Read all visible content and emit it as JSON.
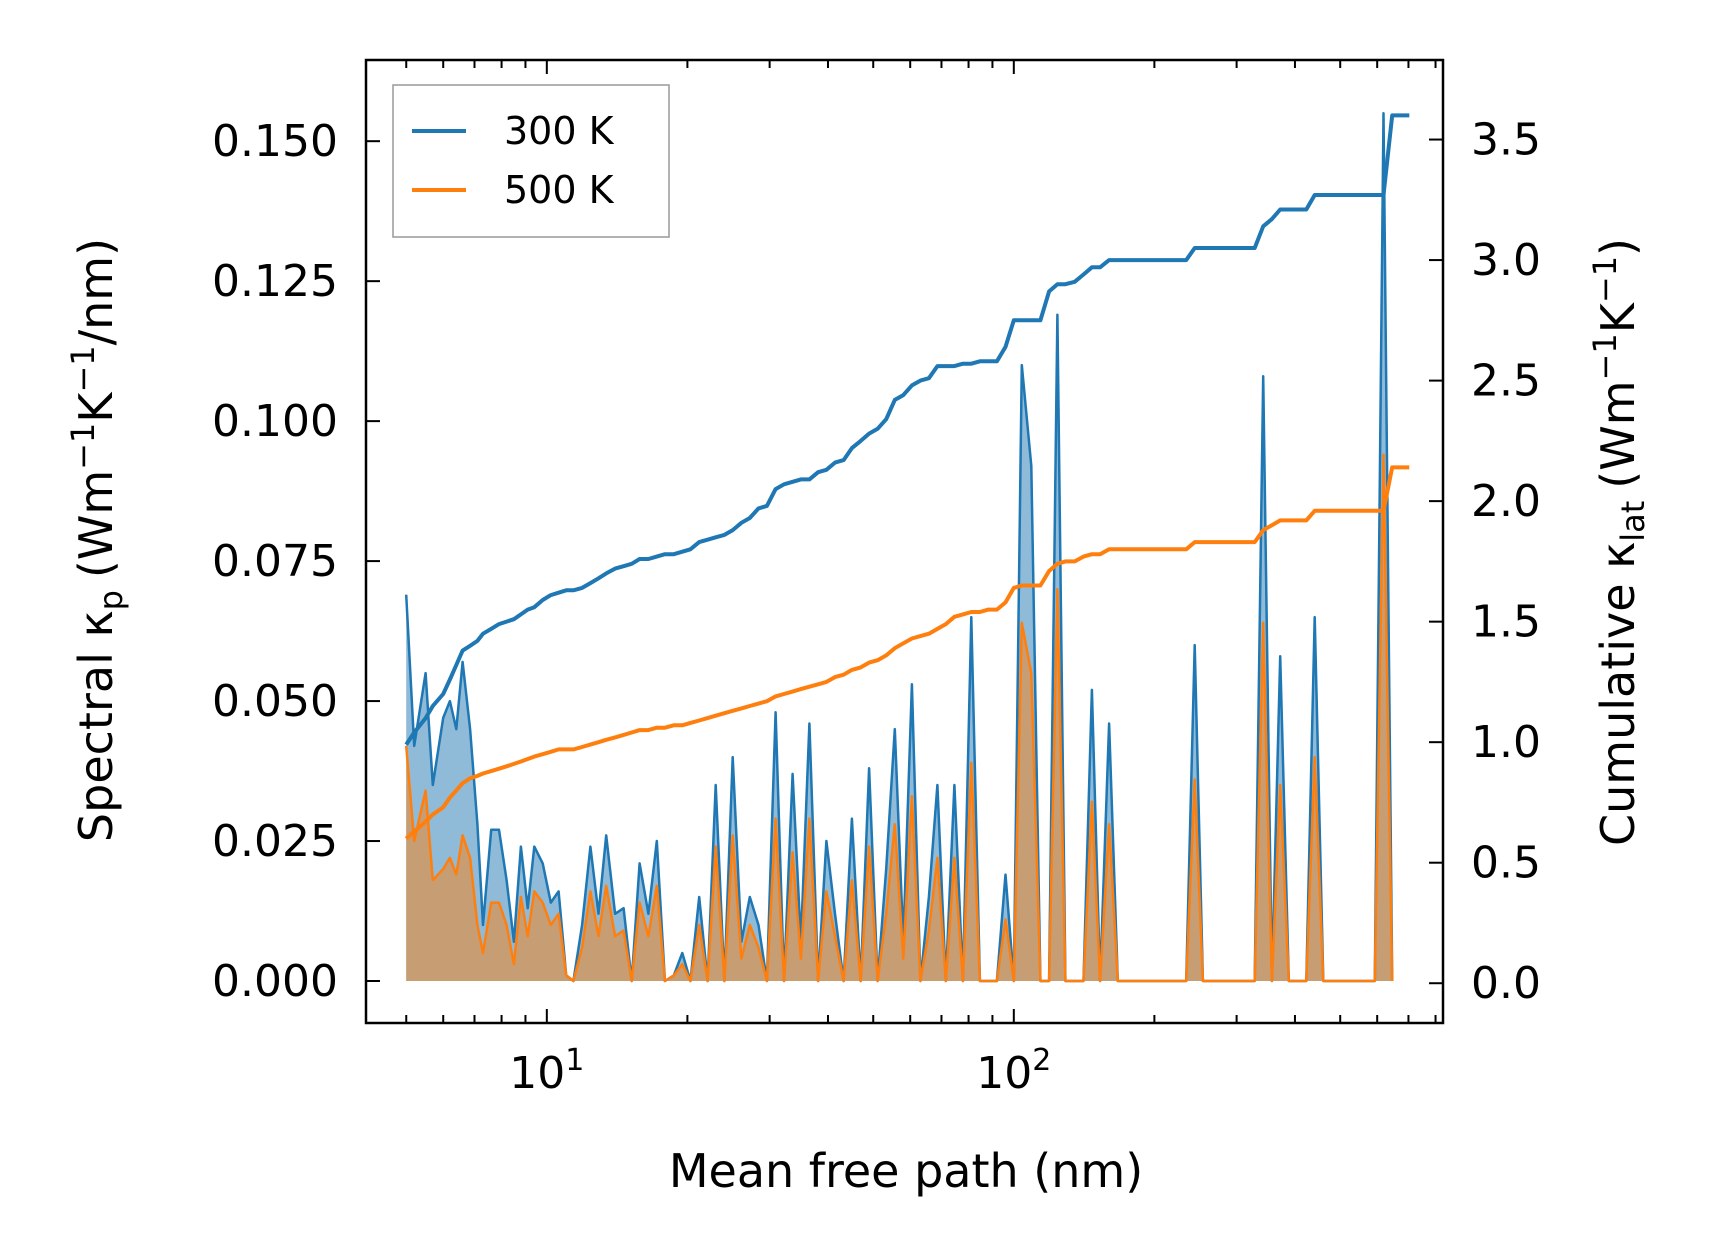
{
  "chart_data": {
    "type": "line",
    "x_scale": "log",
    "xlabel": "Mean free path (nm)",
    "ylabel_left": {
      "prefix": "Spectral κ",
      "sub": "p",
      "units": "(Wm",
      "u1": "−1",
      "u2": "K",
      "u3": "−1",
      "u4": "/nm)"
    },
    "ylabel_right": {
      "prefix": "Cumulative κ",
      "sub": "lat",
      "units": "(Wm",
      "u1": "−1",
      "u2": "K",
      "u3": "−1",
      "u4": ")"
    },
    "xlim": [
      4.1,
      830
    ],
    "ylim_left": [
      -0.0075,
      0.1645
    ],
    "ylim_right": [
      -0.165,
      3.83
    ],
    "x_major_ticks": [
      {
        "value": 10,
        "base": "10",
        "exp": "1"
      },
      {
        "value": 100,
        "base": "10",
        "exp": "2"
      }
    ],
    "y_left_ticks": [
      {
        "value": 0.0,
        "label": "0.000"
      },
      {
        "value": 0.025,
        "label": "0.025"
      },
      {
        "value": 0.05,
        "label": "0.050"
      },
      {
        "value": 0.075,
        "label": "0.075"
      },
      {
        "value": 0.1,
        "label": "0.100"
      },
      {
        "value": 0.125,
        "label": "0.125"
      },
      {
        "value": 0.15,
        "label": "0.150"
      }
    ],
    "y_right_ticks": [
      {
        "value": 0.0,
        "label": "0.0"
      },
      {
        "value": 0.5,
        "label": "0.5"
      },
      {
        "value": 1.0,
        "label": "1.0"
      },
      {
        "value": 1.5,
        "label": "1.5"
      },
      {
        "value": 2.0,
        "label": "2.0"
      },
      {
        "value": 2.5,
        "label": "2.5"
      },
      {
        "value": 3.0,
        "label": "3.0"
      },
      {
        "value": 3.5,
        "label": "3.5"
      }
    ],
    "legend": {
      "location": "top-left",
      "entries": [
        {
          "name": "300 K",
          "color": "#1f77b4"
        },
        {
          "name": "500 K",
          "color": "#ff7f0e"
        }
      ]
    },
    "series": [
      {
        "name": "300 K",
        "color": "#1f77b4",
        "spectral_x": [
          5.0,
          5.2,
          5.5,
          5.7,
          6.0,
          6.2,
          6.4,
          6.6,
          6.85,
          7.1,
          7.3,
          7.6,
          7.9,
          8.2,
          8.5,
          8.8,
          9.1,
          9.4,
          9.8,
          10.2,
          10.6,
          11.0,
          11.4,
          11.9,
          12.4,
          12.9,
          13.4,
          14.0,
          14.6,
          15.2,
          15.8,
          16.5,
          17.2,
          17.9,
          18.7,
          19.5,
          20.3,
          21.2,
          22.1,
          23.0,
          24.0,
          25.0,
          26.1,
          27.2,
          28.4,
          29.6,
          30.9,
          32.2,
          33.6,
          35.0,
          36.5,
          38.1,
          39.7,
          41.4,
          43.2,
          45.0,
          47.0,
          49.0,
          51.1,
          53.3,
          55.6,
          58.0,
          60.5,
          63.1,
          65.8,
          68.6,
          71.5,
          74.6,
          77.8,
          81.1,
          84.6,
          88.2,
          92.0,
          96.0,
          100.0,
          104.0,
          109.0,
          114.0,
          119.0,
          124.0,
          129.0,
          135.0,
          141.0,
          147.0,
          153.0,
          160.0,
          167.0,
          174.0,
          181.0,
          189.0,
          197.0,
          206.0,
          215.0,
          224.0,
          234.0,
          244.0,
          254.0,
          265.0,
          277.0,
          289.0,
          301.0,
          314.0,
          328.0,
          342.0,
          357.0,
          372.0,
          388.0,
          405.0,
          423.0,
          441.0,
          460.0,
          480.0,
          501.0,
          523.0,
          545.0,
          569.0,
          593.0,
          619.0,
          646.0,
          674.0,
          703.0,
          733.0,
          765.0
        ],
        "spectral_y": [
          0.069,
          0.042,
          0.055,
          0.035,
          0.047,
          0.05,
          0.045,
          0.057,
          0.045,
          0.028,
          0.01,
          0.027,
          0.027,
          0.018,
          0.007,
          0.024,
          0.013,
          0.024,
          0.021,
          0.014,
          0.016,
          0.001,
          0.0,
          0.01,
          0.024,
          0.012,
          0.026,
          0.012,
          0.013,
          0.0,
          0.021,
          0.012,
          0.025,
          0.0,
          0.001,
          0.005,
          0.0,
          0.015,
          0.0,
          0.035,
          0.0,
          0.04,
          0.007,
          0.015,
          0.01,
          0.0,
          0.048,
          0.0,
          0.037,
          0.007,
          0.046,
          0.0,
          0.025,
          0.012,
          0.0,
          0.029,
          0.0,
          0.038,
          0.0,
          0.02,
          0.045,
          0.007,
          0.053,
          0.0,
          0.015,
          0.035,
          0.0,
          0.035,
          0.0,
          0.065,
          0.0,
          0.0,
          0.0,
          0.019,
          0.0,
          0.11,
          0.092,
          0.0,
          0.0,
          0.119,
          0.0,
          0.0,
          0.0,
          0.052,
          0.0,
          0.046,
          0.0,
          0.0,
          0.0,
          0.0,
          0.0,
          0.0,
          0.0,
          0.0,
          0.0,
          0.06,
          0.0,
          0.0,
          0.0,
          0.0,
          0.0,
          0.0,
          0.0,
          0.108,
          0.0,
          0.058,
          0.0,
          0.0,
          0.0,
          0.065,
          0.0,
          0.0,
          0.0,
          0.0,
          0.0,
          0.0,
          0.0,
          0.155,
          0.0
        ],
        "cumulative_x": [
          5.0,
          5.2,
          5.5,
          5.7,
          6.0,
          6.2,
          6.4,
          6.6,
          6.85,
          7.1,
          7.3,
          7.6,
          7.9,
          8.2,
          8.5,
          8.8,
          9.1,
          9.4,
          9.8,
          10.2,
          10.6,
          11.0,
          11.4,
          11.9,
          12.4,
          12.9,
          13.4,
          14.0,
          14.6,
          15.2,
          15.8,
          16.5,
          17.2,
          17.9,
          18.7,
          19.5,
          20.3,
          21.2,
          22.1,
          23.0,
          24.0,
          25.0,
          26.1,
          27.2,
          28.4,
          29.6,
          30.9,
          32.2,
          33.6,
          35.0,
          36.5,
          38.1,
          39.7,
          41.4,
          43.2,
          45.0,
          47.0,
          49.0,
          51.1,
          53.3,
          55.6,
          58.0,
          60.5,
          63.1,
          65.8,
          68.6,
          71.5,
          74.6,
          77.8,
          81.1,
          84.6,
          88.2,
          92.0,
          96.0,
          100.0,
          104.0,
          109.0,
          114.0,
          119.0,
          124.0,
          129.0,
          135.0,
          141.0,
          147.0,
          153.0,
          160.0,
          167.0,
          174.0,
          181.0,
          189.0,
          197.0,
          206.0,
          215.0,
          224.0,
          234.0,
          244.0,
          254.0,
          265.0,
          277.0,
          289.0,
          301.0,
          314.0,
          328.0,
          342.0,
          357.0,
          372.0,
          388.0,
          405.0,
          423.0,
          441.0,
          460.0,
          480.0,
          501.0,
          523.0,
          545.0,
          569.0,
          593.0,
          619.0,
          646.0,
          674.0,
          703.0,
          733.0,
          765.0
        ],
        "cumulative_y": [
          0.99,
          1.04,
          1.1,
          1.15,
          1.2,
          1.26,
          1.32,
          1.38,
          1.4,
          1.42,
          1.45,
          1.47,
          1.49,
          1.5,
          1.51,
          1.53,
          1.55,
          1.56,
          1.59,
          1.61,
          1.62,
          1.63,
          1.63,
          1.64,
          1.66,
          1.68,
          1.7,
          1.72,
          1.73,
          1.74,
          1.76,
          1.76,
          1.77,
          1.78,
          1.78,
          1.79,
          1.8,
          1.83,
          1.84,
          1.85,
          1.86,
          1.88,
          1.91,
          1.93,
          1.97,
          1.98,
          2.05,
          2.07,
          2.08,
          2.09,
          2.09,
          2.12,
          2.13,
          2.16,
          2.17,
          2.22,
          2.25,
          2.28,
          2.3,
          2.34,
          2.42,
          2.44,
          2.48,
          2.5,
          2.51,
          2.56,
          2.56,
          2.56,
          2.57,
          2.57,
          2.58,
          2.58,
          2.58,
          2.64,
          2.75,
          2.75,
          2.75,
          2.75,
          2.87,
          2.9,
          2.9,
          2.91,
          2.94,
          2.97,
          2.97,
          3.0,
          3.0,
          3.0,
          3.0,
          3.0,
          3.0,
          3.0,
          3.0,
          3.0,
          3.0,
          3.05,
          3.05,
          3.05,
          3.05,
          3.05,
          3.05,
          3.05,
          3.05,
          3.14,
          3.17,
          3.21,
          3.21,
          3.21,
          3.21,
          3.27,
          3.27,
          3.27,
          3.27,
          3.27,
          3.27,
          3.27,
          3.27,
          3.27,
          3.6,
          3.6,
          3.6
        ]
      },
      {
        "name": "500 K",
        "color": "#ff7f0e",
        "spectral_x": [
          5.0,
          5.2,
          5.5,
          5.7,
          6.0,
          6.2,
          6.4,
          6.6,
          6.85,
          7.1,
          7.3,
          7.6,
          7.9,
          8.2,
          8.5,
          8.8,
          9.1,
          9.4,
          9.8,
          10.2,
          10.6,
          11.0,
          11.4,
          11.9,
          12.4,
          12.9,
          13.4,
          14.0,
          14.6,
          15.2,
          15.8,
          16.5,
          17.2,
          17.9,
          18.7,
          19.5,
          20.3,
          21.2,
          22.1,
          23.0,
          24.0,
          25.0,
          26.1,
          27.2,
          28.4,
          29.6,
          30.9,
          32.2,
          33.6,
          35.0,
          36.5,
          38.1,
          39.7,
          41.4,
          43.2,
          45.0,
          47.0,
          49.0,
          51.1,
          53.3,
          55.6,
          58.0,
          60.5,
          63.1,
          65.8,
          68.6,
          71.5,
          74.6,
          77.8,
          81.1,
          84.6,
          88.2,
          92.0,
          96.0,
          100.0,
          104.0,
          109.0,
          114.0,
          119.0,
          124.0,
          129.0,
          135.0,
          141.0,
          147.0,
          153.0,
          160.0,
          167.0,
          174.0,
          181.0,
          189.0,
          197.0,
          206.0,
          215.0,
          224.0,
          234.0,
          244.0,
          254.0,
          265.0,
          277.0,
          289.0,
          301.0,
          314.0,
          328.0,
          342.0,
          357.0,
          372.0,
          388.0,
          405.0,
          423.0,
          441.0,
          460.0,
          480.0,
          501.0,
          523.0,
          545.0,
          569.0,
          593.0,
          619.0,
          646.0,
          674.0,
          703.0,
          733.0,
          765.0
        ],
        "spectral_y": [
          0.042,
          0.025,
          0.034,
          0.018,
          0.02,
          0.022,
          0.019,
          0.026,
          0.022,
          0.01,
          0.005,
          0.014,
          0.014,
          0.01,
          0.003,
          0.015,
          0.008,
          0.016,
          0.014,
          0.01,
          0.012,
          0.001,
          0.0,
          0.006,
          0.016,
          0.008,
          0.017,
          0.008,
          0.009,
          0.0,
          0.014,
          0.008,
          0.017,
          0.0,
          0.001,
          0.003,
          0.0,
          0.01,
          0.0,
          0.024,
          0.0,
          0.026,
          0.004,
          0.01,
          0.006,
          0.0,
          0.029,
          0.0,
          0.023,
          0.004,
          0.029,
          0.0,
          0.016,
          0.008,
          0.0,
          0.018,
          0.0,
          0.024,
          0.0,
          0.012,
          0.028,
          0.004,
          0.033,
          0.0,
          0.009,
          0.022,
          0.0,
          0.022,
          0.0,
          0.039,
          0.0,
          0.0,
          0.0,
          0.011,
          0.0,
          0.064,
          0.055,
          0.0,
          0.0,
          0.07,
          0.0,
          0.0,
          0.0,
          0.032,
          0.0,
          0.028,
          0.0,
          0.0,
          0.0,
          0.0,
          0.0,
          0.0,
          0.0,
          0.0,
          0.0,
          0.036,
          0.0,
          0.0,
          0.0,
          0.0,
          0.0,
          0.0,
          0.0,
          0.064,
          0.0,
          0.035,
          0.0,
          0.0,
          0.0,
          0.04,
          0.0,
          0.0,
          0.0,
          0.0,
          0.0,
          0.0,
          0.0,
          0.094,
          0.0
        ],
        "cumulative_x": [
          5.0,
          5.2,
          5.5,
          5.7,
          6.0,
          6.2,
          6.4,
          6.6,
          6.85,
          7.1,
          7.3,
          7.6,
          7.9,
          8.2,
          8.5,
          8.8,
          9.1,
          9.4,
          9.8,
          10.2,
          10.6,
          11.0,
          11.4,
          11.9,
          12.4,
          12.9,
          13.4,
          14.0,
          14.6,
          15.2,
          15.8,
          16.5,
          17.2,
          17.9,
          18.7,
          19.5,
          20.3,
          21.2,
          22.1,
          23.0,
          24.0,
          25.0,
          26.1,
          27.2,
          28.4,
          29.6,
          30.9,
          32.2,
          33.6,
          35.0,
          36.5,
          38.1,
          39.7,
          41.4,
          43.2,
          45.0,
          47.0,
          49.0,
          51.1,
          53.3,
          55.6,
          58.0,
          60.5,
          63.1,
          65.8,
          68.6,
          71.5,
          74.6,
          77.8,
          81.1,
          84.6,
          88.2,
          92.0,
          96.0,
          100.0,
          104.0,
          109.0,
          114.0,
          119.0,
          124.0,
          129.0,
          135.0,
          141.0,
          147.0,
          153.0,
          160.0,
          167.0,
          174.0,
          181.0,
          189.0,
          197.0,
          206.0,
          215.0,
          224.0,
          234.0,
          244.0,
          254.0,
          265.0,
          277.0,
          289.0,
          301.0,
          314.0,
          328.0,
          342.0,
          357.0,
          372.0,
          388.0,
          405.0,
          423.0,
          441.0,
          460.0,
          480.0,
          501.0,
          523.0,
          545.0,
          569.0,
          593.0,
          619.0,
          646.0,
          674.0,
          703.0,
          733.0,
          765.0
        ],
        "cumulative_y": [
          0.6,
          0.63,
          0.67,
          0.7,
          0.73,
          0.77,
          0.8,
          0.83,
          0.85,
          0.86,
          0.87,
          0.88,
          0.89,
          0.9,
          0.91,
          0.92,
          0.93,
          0.94,
          0.95,
          0.96,
          0.97,
          0.97,
          0.97,
          0.98,
          0.99,
          1.0,
          1.01,
          1.02,
          1.03,
          1.04,
          1.05,
          1.05,
          1.06,
          1.06,
          1.07,
          1.07,
          1.08,
          1.09,
          1.1,
          1.11,
          1.12,
          1.13,
          1.14,
          1.15,
          1.16,
          1.17,
          1.19,
          1.2,
          1.21,
          1.22,
          1.23,
          1.24,
          1.25,
          1.27,
          1.28,
          1.3,
          1.31,
          1.33,
          1.34,
          1.36,
          1.39,
          1.41,
          1.43,
          1.44,
          1.45,
          1.47,
          1.49,
          1.52,
          1.53,
          1.54,
          1.54,
          1.55,
          1.55,
          1.58,
          1.64,
          1.65,
          1.65,
          1.65,
          1.71,
          1.74,
          1.75,
          1.75,
          1.77,
          1.78,
          1.78,
          1.8,
          1.8,
          1.8,
          1.8,
          1.8,
          1.8,
          1.8,
          1.8,
          1.8,
          1.8,
          1.83,
          1.83,
          1.83,
          1.83,
          1.83,
          1.83,
          1.83,
          1.83,
          1.88,
          1.9,
          1.92,
          1.92,
          1.92,
          1.92,
          1.96,
          1.96,
          1.96,
          1.96,
          1.96,
          1.96,
          1.96,
          1.96,
          1.96,
          2.14,
          2.14,
          2.14
        ]
      }
    ]
  }
}
